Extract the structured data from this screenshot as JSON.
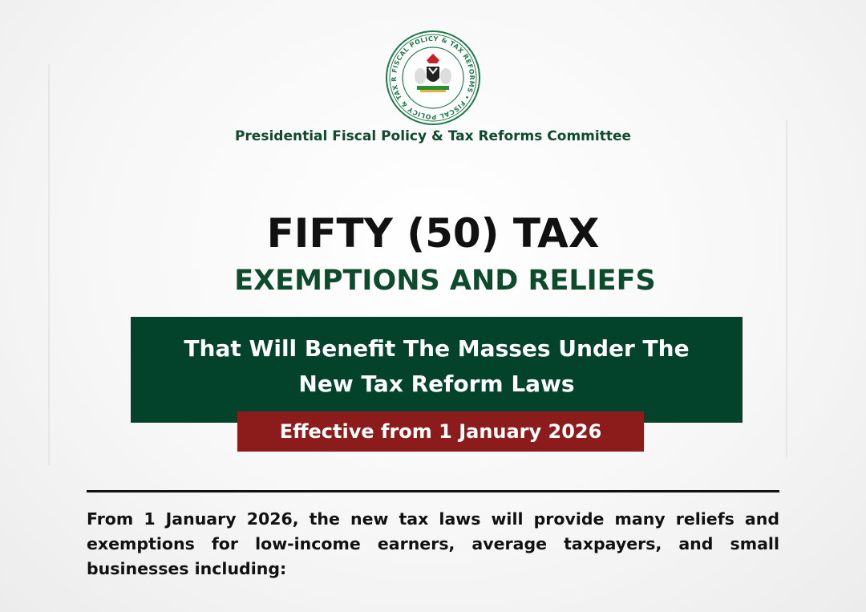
{
  "logo": {
    "ring_text": "FISCAL POLICY & TAX REFORMS",
    "colors": {
      "ring": "#1f7a4a",
      "eagle": "#c8202a"
    }
  },
  "header": {
    "committee": "Presidential Fiscal Policy & Tax Reforms Committee"
  },
  "title": {
    "line1": "FIFTY (50) TAX",
    "line2": "EXEMPTIONS AND RELIEFS"
  },
  "banner": {
    "subtitle_line1": "That Will Benefit The Masses Under The",
    "subtitle_line2": "New Tax Reform Laws",
    "effective": "Effective from 1 January 2026"
  },
  "body": {
    "intro": "From 1 January 2026, the new tax laws will provide many reliefs and exemptions for low-income earners, average taxpayers, and small businesses including:"
  },
  "colors": {
    "green": "#03422b",
    "red": "#8c1b1b",
    "title_green": "#0e4a2c"
  }
}
